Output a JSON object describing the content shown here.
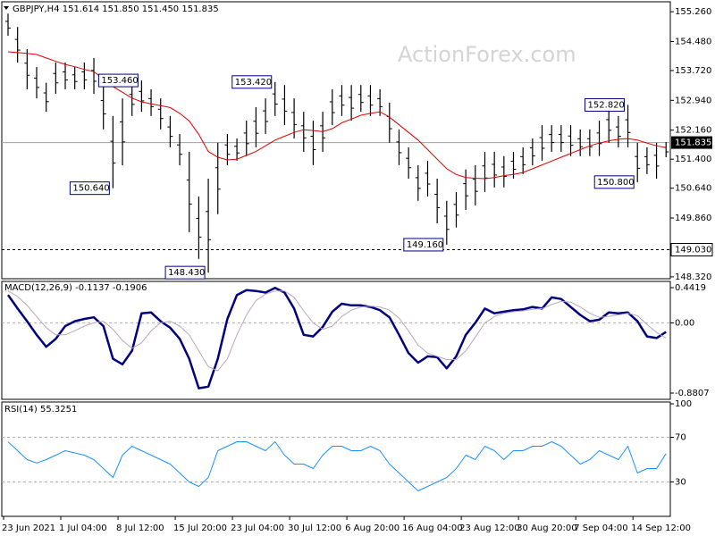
{
  "chart_data": [
    {
      "type": "range",
      "title": "GBPJPY,H4  151.614 151.850 151.450 151.835",
      "watermark": "ActionForex.com",
      "categories": [
        "23 Jun 2021",
        null,
        null,
        null,
        null,
        null,
        "1 Jul 04:00",
        null,
        null,
        null,
        null,
        null,
        "8 Jul 12:00",
        null,
        null,
        null,
        null,
        null,
        "15 Jul 20:00",
        null,
        null,
        null,
        null,
        null,
        "23 Jul 04:00",
        null,
        null,
        null,
        null,
        null,
        "30 Jul 12:00",
        null,
        null,
        null,
        null,
        null,
        "6 Aug 20:00",
        null,
        null,
        null,
        null,
        null,
        "16 Aug 04:00",
        null,
        null,
        null,
        null,
        null,
        "23 Aug 12:00",
        null,
        null,
        null,
        null,
        null,
        "30 Aug 20:00",
        null,
        null,
        null,
        null,
        null,
        "7 Sep 04:00",
        null,
        null,
        null,
        null,
        null,
        "14 Sep 12:00",
        null,
        null,
        null
      ],
      "high": [
        155.21,
        154.86,
        154.28,
        153.81,
        153.4,
        153.93,
        153.93,
        153.81,
        153.93,
        154.05,
        153.34,
        152.53,
        152.99,
        153.4,
        153.46,
        153.23,
        152.99,
        152.53,
        152.06,
        151.59,
        150.42,
        150.89,
        151.83,
        152.06,
        151.94,
        152.41,
        152.76,
        152.99,
        153.42,
        153.34,
        152.99,
        152.64,
        152.41,
        152.64,
        153.23,
        153.34,
        153.34,
        153.34,
        153.34,
        153.23,
        152.88,
        152.18,
        151.71,
        151.24,
        151.36,
        150.89,
        150.31,
        150.54,
        151.13,
        151.24,
        151.59,
        151.59,
        151.48,
        151.59,
        151.71,
        151.94,
        152.29,
        152.29,
        152.29,
        152.29,
        152.18,
        152.18,
        152.41,
        152.76,
        152.53,
        152.82,
        151.83,
        151.71,
        151.83,
        151.85
      ],
      "low": [
        154.63,
        153.93,
        153.23,
        152.99,
        152.64,
        153.11,
        153.23,
        153.23,
        153.23,
        153.11,
        152.18,
        150.64,
        151.24,
        152.53,
        152.64,
        152.53,
        152.18,
        151.71,
        151.24,
        149.49,
        148.79,
        148.43,
        149.96,
        151.24,
        151.36,
        151.48,
        151.71,
        152.06,
        152.53,
        152.29,
        151.94,
        151.59,
        151.24,
        151.59,
        152.29,
        152.53,
        152.41,
        152.64,
        152.53,
        152.53,
        151.83,
        151.24,
        150.89,
        150.31,
        150.42,
        149.72,
        149.16,
        149.61,
        150.07,
        150.19,
        150.54,
        150.66,
        150.66,
        150.89,
        151.01,
        151.24,
        151.36,
        151.59,
        151.59,
        151.48,
        151.48,
        151.48,
        151.48,
        151.83,
        151.71,
        151.71,
        150.8,
        151.01,
        150.89,
        151.45
      ],
      "color": "#000000",
      "overlay": {
        "color": "#e00000",
        "values": [
          154.21,
          154.19,
          154.17,
          154.14,
          154.05,
          153.96,
          153.88,
          153.82,
          153.75,
          153.69,
          153.5,
          153.3,
          153.15,
          153.0,
          152.9,
          152.85,
          152.8,
          152.75,
          152.6,
          152.4,
          152.05,
          151.6,
          151.45,
          151.38,
          151.4,
          151.5,
          151.6,
          151.75,
          151.9,
          152.0,
          152.1,
          152.17,
          152.15,
          152.12,
          152.2,
          152.35,
          152.45,
          152.55,
          152.6,
          152.64,
          152.5,
          152.3,
          152.1,
          151.9,
          151.65,
          151.4,
          151.15,
          151.0,
          150.92,
          150.9,
          150.89,
          150.92,
          150.97,
          151.0,
          151.05,
          151.15,
          151.25,
          151.35,
          151.45,
          151.55,
          151.65,
          151.75,
          151.82,
          151.88,
          151.92,
          151.94,
          151.9,
          151.82,
          151.75,
          151.7
        ]
      },
      "annotations": [
        {
          "bar": 14,
          "value": 153.46,
          "label": "153.460"
        },
        {
          "bar": 11,
          "value": 150.64,
          "label": "150.640"
        },
        {
          "bar": 28,
          "value": 153.42,
          "label": "153.420"
        },
        {
          "bar": 21,
          "value": 148.43,
          "label": "148.430"
        },
        {
          "bar": 46,
          "value": 149.16,
          "label": "149.160"
        },
        {
          "bar": 65,
          "value": 152.82,
          "label": "152.820"
        },
        {
          "bar": 66,
          "value": 150.8,
          "label": "150.800"
        }
      ],
      "price_line": {
        "value": 151.835,
        "label": "151.835"
      },
      "level": {
        "value": 149.03,
        "label": "149.030"
      },
      "ylim": [
        148.27,
        155.52
      ],
      "yticks": [
        {
          "value": 155.26,
          "label": "155.260"
        },
        {
          "value": 154.48,
          "label": "154.480"
        },
        {
          "value": 153.72,
          "label": "153.720"
        },
        {
          "value": 152.94,
          "label": "152.940"
        },
        {
          "value": 152.16,
          "label": "152.160"
        },
        {
          "value": 151.4,
          "label": "151.400"
        },
        {
          "value": 150.64,
          "label": "150.640"
        },
        {
          "value": 149.86,
          "label": "149.860"
        },
        {
          "value": 148.32,
          "label": "148.320"
        }
      ],
      "grid": false
    },
    {
      "type": "line",
      "title": "MACD(12,26,9) -0.1137 -0.1906",
      "series": [
        {
          "color": "#000080",
          "width": 2.5,
          "values": [
            0.35,
            0.18,
            0.02,
            -0.15,
            -0.3,
            -0.2,
            -0.04,
            0.02,
            0.05,
            0.07,
            -0.04,
            -0.45,
            -0.52,
            -0.35,
            0.12,
            0.13,
            0.02,
            -0.06,
            -0.2,
            -0.45,
            -0.82,
            -0.8,
            -0.45,
            0.05,
            0.35,
            0.41,
            0.4,
            0.38,
            0.44,
            0.38,
            0.18,
            -0.15,
            -0.17,
            -0.05,
            0.14,
            0.24,
            0.22,
            0.22,
            0.2,
            0.16,
            0.07,
            -0.15,
            -0.38,
            -0.5,
            -0.42,
            -0.43,
            -0.57,
            -0.42,
            -0.15,
            0.0,
            0.18,
            0.12,
            0.14,
            0.16,
            0.17,
            0.2,
            0.18,
            0.32,
            0.3,
            0.2,
            0.1,
            0.02,
            0.04,
            0.13,
            0.12,
            0.13,
            0.02,
            -0.17,
            -0.19,
            -0.1137
          ]
        },
        {
          "color": "#b8a8b8",
          "width": 1,
          "values": [
            0.4,
            0.33,
            0.22,
            0.08,
            -0.06,
            -0.15,
            -0.15,
            -0.1,
            -0.04,
            0.0,
            0.02,
            -0.08,
            -0.22,
            -0.32,
            -0.25,
            -0.1,
            0.0,
            0.02,
            -0.04,
            -0.15,
            -0.35,
            -0.55,
            -0.6,
            -0.45,
            -0.15,
            0.1,
            0.28,
            0.36,
            0.4,
            0.4,
            0.32,
            0.15,
            0.0,
            -0.08,
            -0.04,
            0.08,
            0.16,
            0.2,
            0.21,
            0.2,
            0.16,
            0.06,
            -0.1,
            -0.28,
            -0.38,
            -0.42,
            -0.46,
            -0.46,
            -0.35,
            -0.18,
            0.0,
            0.08,
            0.12,
            0.14,
            0.15,
            0.17,
            0.18,
            0.23,
            0.27,
            0.26,
            0.2,
            0.12,
            0.07,
            0.08,
            0.1,
            0.12,
            0.09,
            -0.02,
            -0.12,
            -0.1906
          ]
        }
      ],
      "ylim": [
        -0.8807,
        0.4419
      ],
      "yticks": [
        0.4419,
        {
          "value": 0,
          "label": "0.00"
        },
        -0.8807
      ],
      "grid": true
    },
    {
      "type": "line",
      "title": "RSI(14) 55.3251",
      "series": [
        {
          "color": "#1e90ff",
          "width": 1,
          "values": [
            66,
            58,
            50,
            47,
            50,
            54,
            58,
            56,
            54,
            50,
            42,
            34,
            54,
            62,
            58,
            54,
            50,
            46,
            38,
            30,
            26,
            34,
            58,
            62,
            66,
            66,
            62,
            58,
            66,
            54,
            46,
            46,
            42,
            54,
            62,
            62,
            58,
            58,
            62,
            58,
            46,
            38,
            30,
            22,
            26,
            30,
            34,
            42,
            54,
            50,
            62,
            58,
            50,
            58,
            58,
            62,
            62,
            66,
            62,
            54,
            46,
            50,
            58,
            54,
            50,
            62,
            38,
            42,
            42,
            55.3251
          ]
        }
      ],
      "ylim": [
        0,
        100
      ],
      "yticks": [
        100,
        70,
        30
      ],
      "grid": true
    }
  ]
}
